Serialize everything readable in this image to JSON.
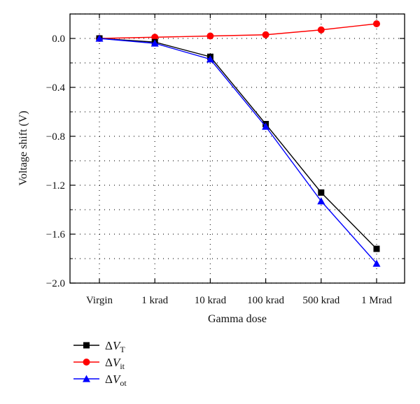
{
  "chart_data": {
    "type": "line",
    "xlabel": "Gamma dose",
    "ylabel": "Voltage shift (V)",
    "categories": [
      "Virgin",
      "1 krad",
      "10 krad",
      "100 krad",
      "500 krad",
      "1 Mrad"
    ],
    "ylim": [
      -2.0,
      0.2
    ],
    "yticks": [
      0.0,
      -0.4,
      -0.8,
      -1.2,
      -1.6,
      -2.0
    ],
    "ytick_labels": [
      "0.0",
      "−0.4",
      "−0.8",
      "−1.2",
      "−1.6",
      "−2.0"
    ],
    "grid": "dotted",
    "legend_position": "bottom-left",
    "series": [
      {
        "name": "ΔV",
        "subscript": "T",
        "color": "#000000",
        "marker": "square",
        "values": [
          0.0,
          -0.03,
          -0.15,
          -0.7,
          -1.26,
          -1.72
        ]
      },
      {
        "name": "ΔV",
        "subscript": "it",
        "color": "#ff0000",
        "marker": "circle",
        "values": [
          0.0,
          0.01,
          0.02,
          0.03,
          0.07,
          0.12
        ]
      },
      {
        "name": "ΔV",
        "subscript": "ot",
        "color": "#0000ff",
        "marker": "triangle",
        "values": [
          0.0,
          -0.04,
          -0.17,
          -0.72,
          -1.33,
          -1.84
        ]
      }
    ]
  }
}
